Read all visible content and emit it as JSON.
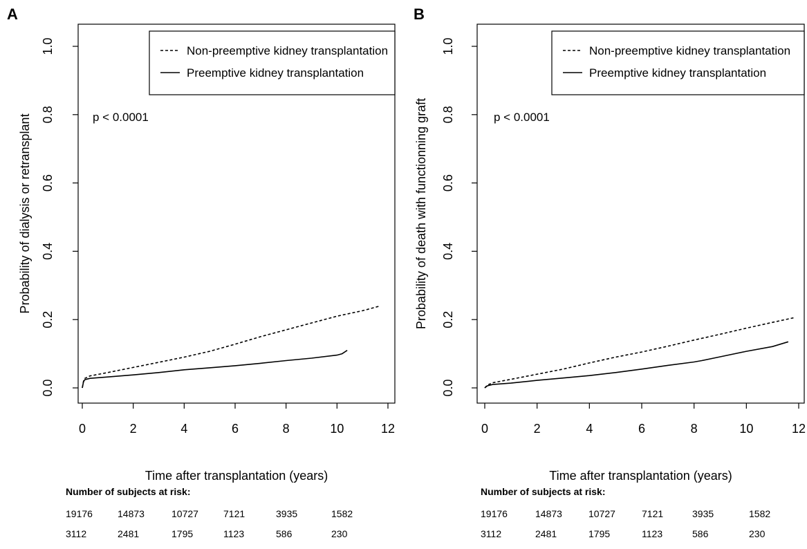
{
  "chart_data": [
    {
      "type": "line",
      "panel_label": "A",
      "xlabel": "Time after transplantation (years)",
      "ylabel": "Probability of dialysis or retransplant",
      "xlim": [
        0,
        12
      ],
      "ylim": [
        0,
        1
      ],
      "xticks": [
        "0",
        "2",
        "4",
        "6",
        "8",
        "10",
        "12"
      ],
      "yticks": [
        "0.0",
        "0.2",
        "0.4",
        "0.6",
        "0.8",
        "1.0"
      ],
      "grid": false,
      "legend_position": "top-right",
      "annotation": "p < 0.0001",
      "series": [
        {
          "name": "Non-preemptive kidney transplantation",
          "style": "dashed",
          "x": [
            0,
            0.05,
            0.1,
            0.3,
            1,
            2,
            3,
            4,
            5,
            6,
            7,
            8,
            9,
            10,
            10.5,
            11,
            11.7
          ],
          "y": [
            0,
            0.02,
            0.028,
            0.035,
            0.045,
            0.06,
            0.075,
            0.09,
            0.107,
            0.128,
            0.15,
            0.17,
            0.19,
            0.21,
            0.218,
            0.226,
            0.24
          ]
        },
        {
          "name": "Preemptive kidney transplantation",
          "style": "solid",
          "x": [
            0,
            0.05,
            0.1,
            0.3,
            1,
            2,
            3,
            4,
            5,
            6,
            7,
            8,
            9,
            10,
            10.2,
            10.4
          ],
          "y": [
            0,
            0.018,
            0.024,
            0.028,
            0.032,
            0.038,
            0.045,
            0.053,
            0.059,
            0.065,
            0.072,
            0.08,
            0.087,
            0.096,
            0.1,
            0.11
          ]
        }
      ],
      "risk_table": {
        "title": "Number of subjects at risk:",
        "rows": [
          [
            "19176",
            "14873",
            "10727",
            "7121",
            "3935",
            "1582"
          ],
          [
            "3112",
            "2481",
            "1795",
            "1123",
            "586",
            "230"
          ]
        ]
      }
    },
    {
      "type": "line",
      "panel_label": "B",
      "xlabel": "Time after transplantation (years)",
      "ylabel": "Probability of death with functionning graft",
      "xlim": [
        0,
        12
      ],
      "ylim": [
        0,
        1
      ],
      "xticks": [
        "0",
        "2",
        "4",
        "6",
        "8",
        "10",
        "12"
      ],
      "yticks": [
        "0.0",
        "0.2",
        "0.4",
        "0.6",
        "0.8",
        "1.0"
      ],
      "grid": false,
      "legend_position": "top-right",
      "annotation": "p < 0.0001",
      "series": [
        {
          "name": "Non-preemptive kidney transplantation",
          "style": "dashed",
          "x": [
            0,
            0.1,
            0.3,
            1,
            2,
            3,
            4,
            5,
            6,
            7,
            8,
            9,
            10,
            11,
            11.8
          ],
          "y": [
            0,
            0.008,
            0.015,
            0.025,
            0.04,
            0.055,
            0.073,
            0.09,
            0.105,
            0.122,
            0.14,
            0.157,
            0.175,
            0.192,
            0.205
          ]
        },
        {
          "name": "Preemptive kidney transplantation",
          "style": "solid",
          "x": [
            0,
            0.1,
            0.3,
            1,
            2,
            3,
            4,
            5,
            6,
            7,
            8,
            8.3,
            9,
            10,
            11,
            11.6
          ],
          "y": [
            0,
            0.006,
            0.01,
            0.014,
            0.022,
            0.029,
            0.036,
            0.045,
            0.055,
            0.066,
            0.076,
            0.08,
            0.091,
            0.107,
            0.121,
            0.135
          ]
        }
      ],
      "risk_table": {
        "title": "Number of subjects at risk:",
        "rows": [
          [
            "19176",
            "14873",
            "10727",
            "7121",
            "3935",
            "1582"
          ],
          [
            "3112",
            "2481",
            "1795",
            "1123",
            "586",
            "230"
          ]
        ]
      }
    }
  ]
}
